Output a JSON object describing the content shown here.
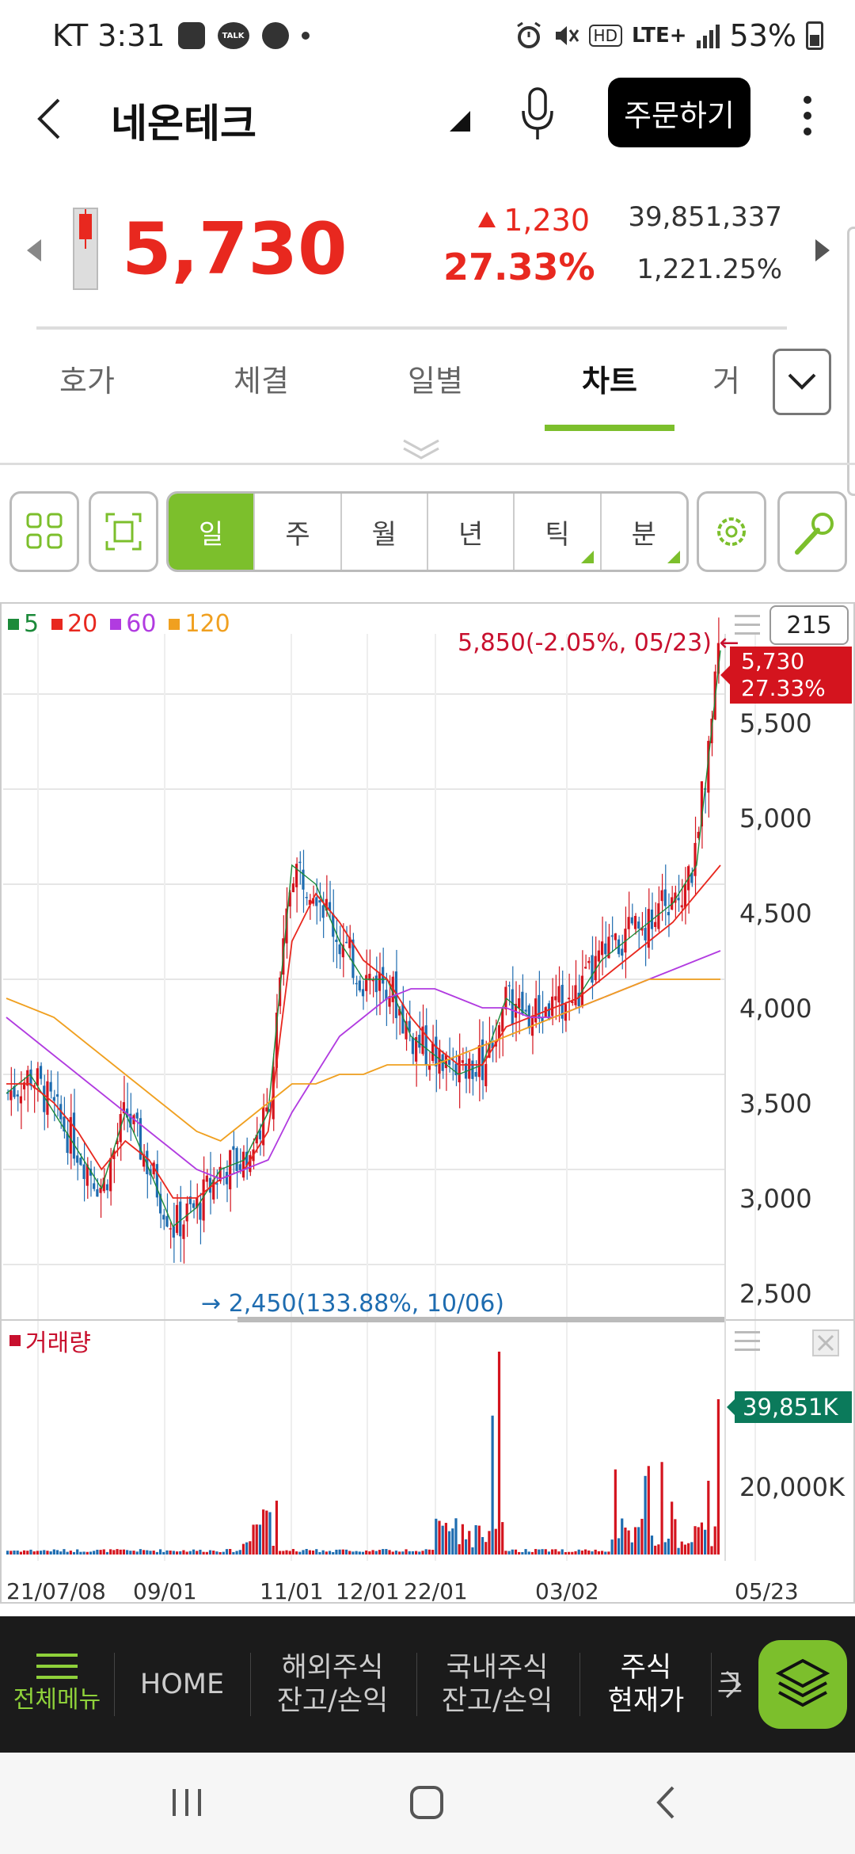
{
  "status_bar": {
    "carrier_time": "KT 3:31",
    "battery": "53%",
    "network": "LTE+",
    "icons": [
      "image-icon",
      "talk-icon",
      "check-icon",
      "alarm-icon",
      "mute-icon",
      "hd-icon",
      "signal-icon",
      "battery-icon"
    ],
    "talk_text": "TALK",
    "hd_text": "HD"
  },
  "header": {
    "stock_name": "네온테크",
    "order_button": "주문하기"
  },
  "price": {
    "current": "5,730",
    "change": "1,230",
    "change_pct": "27.33%",
    "volume": "39,851,337",
    "volume_rate": "1,221.25%",
    "up_color": "#e8281f"
  },
  "tabs": {
    "items": [
      {
        "label": "호가"
      },
      {
        "label": "체결"
      },
      {
        "label": "일별"
      },
      {
        "label": "차트"
      },
      {
        "label": "거"
      }
    ],
    "active_index": 3,
    "accent": "#7cbf2c"
  },
  "toolbar": {
    "periods": [
      "일",
      "주",
      "월",
      "년",
      "틱",
      "분"
    ],
    "active_period": "일"
  },
  "chart": {
    "count": "215",
    "legend": [
      {
        "label": "5",
        "color": "#1c8a3a"
      },
      {
        "label": "20",
        "color": "#e8281f"
      },
      {
        "label": "60",
        "color": "#b13be0"
      },
      {
        "label": "120",
        "color": "#f0a020"
      }
    ],
    "high_label": "5,850(-2.05%, 05/23)",
    "low_label": "2,450(133.88%, 10/06)",
    "cur_tag_price": "5,730",
    "cur_tag_pct": "27.33%",
    "y_ticks": [
      "5,500",
      "5,000",
      "4,500",
      "4,000",
      "3,500",
      "3,000",
      "2,500"
    ],
    "volume_label": "거래량",
    "volume_tag": "39,851K",
    "volume_tick": "20,000K",
    "x_ticks": [
      "21/07/08",
      "09/01",
      "11/01",
      "12/01",
      "22/01",
      "03/02",
      "05/23"
    ]
  },
  "chart_data": {
    "type": "candlestick",
    "title": "",
    "xlabel": "",
    "ylabel": "",
    "ylim": [
      2400,
      5900
    ],
    "x_ticks": [
      "21/07/08",
      "09/01",
      "11/01",
      "12/01",
      "22/01",
      "03/02",
      "05/23"
    ],
    "series": [
      {
        "name": "5",
        "values": [
          3400,
          3500,
          3300,
          3100,
          2900,
          3300,
          3000,
          2700,
          2800,
          3000,
          3050,
          3300,
          4600,
          4500,
          4200,
          4000,
          4000,
          3700,
          3600,
          3500,
          3550,
          3900,
          3800,
          3850,
          3900,
          4100,
          4200,
          4300,
          4400,
          4600,
          5730
        ]
      },
      {
        "name": "20",
        "values": [
          3450,
          3450,
          3350,
          3200,
          3000,
          3150,
          3050,
          2850,
          2850,
          2950,
          3000,
          3200,
          4200,
          4450,
          4300,
          4100,
          4000,
          3800,
          3650,
          3550,
          3550,
          3750,
          3800,
          3850,
          3900,
          4000,
          4100,
          4200,
          4300,
          4450,
          4600
        ]
      },
      {
        "name": "60",
        "values": [
          3800,
          3700,
          3600,
          3500,
          3400,
          3300,
          3200,
          3100,
          3000,
          2950,
          3000,
          3050,
          3300,
          3500,
          3700,
          3800,
          3900,
          3950,
          3950,
          3900,
          3850,
          3850,
          3800,
          3800,
          3850,
          3900,
          3950,
          4000,
          4050,
          4100,
          4150
        ]
      },
      {
        "name": "120",
        "values": [
          3900,
          3850,
          3800,
          3700,
          3600,
          3500,
          3400,
          3300,
          3200,
          3150,
          3250,
          3350,
          3450,
          3450,
          3500,
          3500,
          3550,
          3550,
          3550,
          3600,
          3650,
          3700,
          3750,
          3800,
          3850,
          3900,
          3950,
          4000,
          4000,
          4000,
          4000
        ]
      }
    ],
    "volume": {
      "label": "거래량",
      "last": "39,851K",
      "tick": "20,000K"
    },
    "high": {
      "value": 5850,
      "label": "5,850(-2.05%, 05/23)"
    },
    "low": {
      "value": 2450,
      "label": "2,450(133.88%, 10/06)"
    },
    "grid": true,
    "legend": "top-left"
  },
  "bottom_menu": {
    "full_menu": "전체메뉴",
    "items": [
      {
        "label": "HOME"
      },
      {
        "label": "해외주식\n잔고/손익"
      },
      {
        "label": "국내주식\n잔고/손익"
      },
      {
        "label": "주식\n현재가"
      },
      {
        "label": "크"
      }
    ],
    "active": "주식 현재가"
  }
}
